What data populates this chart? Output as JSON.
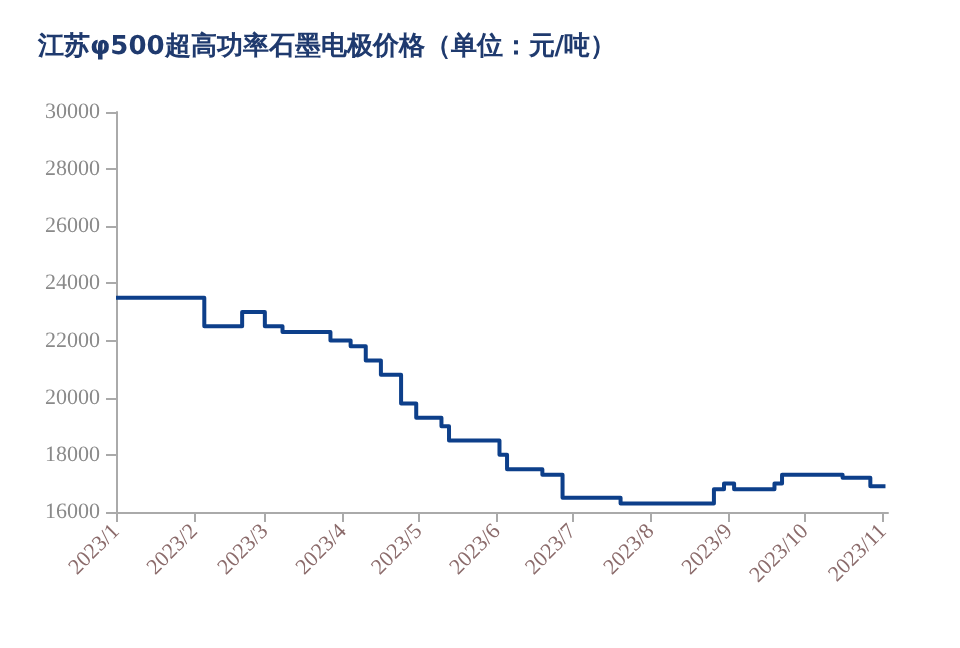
{
  "chart_data": {
    "type": "step",
    "title": "江苏φ500超高功率石墨电极价格（单位：元/吨）",
    "x": [
      "2023-01-01",
      "2023-02-05",
      "2023-02-20",
      "2023-03-01",
      "2023-03-08",
      "2023-03-27",
      "2023-04-04",
      "2023-04-10",
      "2023-04-16",
      "2023-04-24",
      "2023-04-30",
      "2023-05-10",
      "2023-05-13",
      "2023-06-02",
      "2023-06-05",
      "2023-06-19",
      "2023-06-27",
      "2023-07-20",
      "2023-08-26",
      "2023-08-30",
      "2023-09-03",
      "2023-09-19",
      "2023-09-22",
      "2023-10-16",
      "2023-10-27",
      "2023-11-02"
    ],
    "series": [
      {
        "color": "#0d3f8a",
        "values": [
          23500,
          22500,
          23000,
          22500,
          22300,
          22000,
          21800,
          21300,
          20800,
          19800,
          19300,
          19000,
          18500,
          18000,
          17500,
          17300,
          16500,
          16300,
          16800,
          17000,
          16800,
          17000,
          17300,
          17200,
          16900,
          16900
        ]
      }
    ],
    "xlim": [
      "2023-01-01",
      "2023-11-03"
    ],
    "xticks": [
      {
        "value": "2023-01-01",
        "label": "2023/1"
      },
      {
        "value": "2023-02-01",
        "label": "2023/2"
      },
      {
        "value": "2023-03-01",
        "label": "2023/3"
      },
      {
        "value": "2023-04-01",
        "label": "2023/4"
      },
      {
        "value": "2023-05-01",
        "label": "2023/5"
      },
      {
        "value": "2023-06-01",
        "label": "2023/6"
      },
      {
        "value": "2023-07-01",
        "label": "2023/7"
      },
      {
        "value": "2023-08-01",
        "label": "2023/8"
      },
      {
        "value": "2023-09-01",
        "label": "2023/9"
      },
      {
        "value": "2023-10-01",
        "label": "2023/10"
      },
      {
        "value": "2023-11-01",
        "label": "2023/11"
      }
    ],
    "ylim": [
      16000,
      30000
    ],
    "yticks": [
      16000,
      18000,
      20000,
      22000,
      24000,
      26000,
      28000,
      30000
    ],
    "grid": false,
    "marker": "none",
    "line_style": "solid"
  }
}
